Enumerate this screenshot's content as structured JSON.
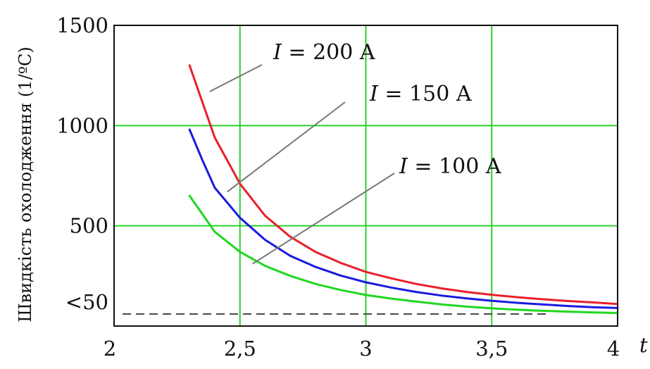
{
  "chart_data": {
    "type": "line",
    "title": "",
    "xlabel": "t",
    "ylabel": "Швидкість охолодження (1/ºС)",
    "xlim": [
      2,
      4
    ],
    "ylim": [
      0,
      1500
    ],
    "grid": true,
    "x_ticks": [
      "2",
      "2,5",
      "3",
      "3,5",
      "4"
    ],
    "y_ticks": [
      {
        "label": "1500",
        "value": 1500
      },
      {
        "label": "1000",
        "value": 1000
      },
      {
        "label": "500",
        "value": 500
      },
      {
        "label": "<50",
        "value": 120
      }
    ],
    "reference_line": {
      "y": 60,
      "style": "dashed"
    },
    "annotations": [
      {
        "series": "I = 200 A",
        "italic_part": "I",
        "rest": " = 200 A",
        "point": [
          2.38,
          1170
        ]
      },
      {
        "series": "I = 150 A",
        "italic_part": "I",
        "rest": " = 150 A",
        "point": [
          2.45,
          670
        ]
      },
      {
        "series": "I = 100 A",
        "italic_part": "I",
        "rest": " = 100 A",
        "point": [
          2.55,
          310
        ]
      }
    ],
    "series": [
      {
        "name": "I = 200 A",
        "color": "#e8202a",
        "x": [
          2.3,
          2.35,
          2.4,
          2.5,
          2.6,
          2.7,
          2.8,
          2.9,
          3.0,
          3.1,
          3.2,
          3.3,
          3.4,
          3.5,
          3.6,
          3.7,
          3.8,
          3.9,
          4.0
        ],
        "y": [
          1300,
          1120,
          940,
          710,
          550,
          445,
          370,
          315,
          270,
          238,
          210,
          188,
          170,
          156,
          144,
          134,
          125,
          118,
          110
        ]
      },
      {
        "name": "I = 150 A",
        "color": "#1a1adf",
        "x": [
          2.3,
          2.35,
          2.4,
          2.5,
          2.6,
          2.7,
          2.8,
          2.9,
          3.0,
          3.1,
          3.2,
          3.3,
          3.4,
          3.5,
          3.6,
          3.7,
          3.8,
          3.9,
          4.0
        ],
        "y": [
          980,
          830,
          690,
          540,
          430,
          350,
          295,
          252,
          218,
          192,
          170,
          152,
          138,
          126,
          116,
          108,
          100,
          94,
          90
        ]
      },
      {
        "name": "I = 100 A",
        "color": "#1fd81f",
        "x": [
          2.3,
          2.35,
          2.4,
          2.5,
          2.6,
          2.7,
          2.8,
          2.9,
          3.0,
          3.1,
          3.2,
          3.3,
          3.4,
          3.5,
          3.6,
          3.7,
          3.8,
          3.9,
          4.0
        ],
        "y": [
          650,
          560,
          470,
          370,
          300,
          250,
          210,
          180,
          155,
          137,
          122,
          108,
          97,
          88,
          82,
          76,
          72,
          68,
          65
        ]
      }
    ]
  }
}
